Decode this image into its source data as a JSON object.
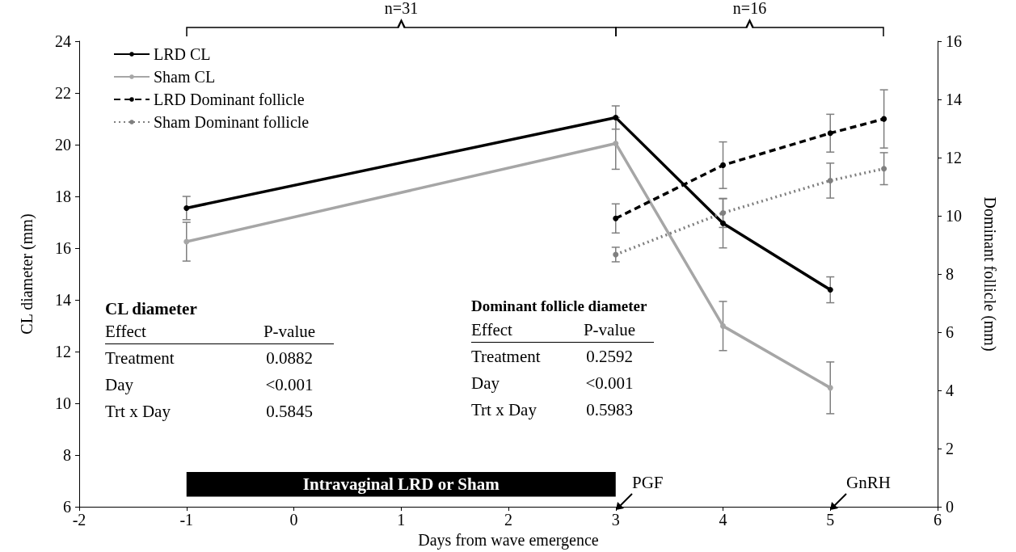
{
  "chart_data": {
    "type": "line",
    "xlabel": "Days from wave emergence",
    "ylabel": "CL diameter (mm)",
    "y2label": "Dominant follicle (mm)",
    "xlim": [
      -2,
      6
    ],
    "xticks": [
      -2,
      -1,
      0,
      1,
      2,
      3,
      4,
      5,
      6
    ],
    "ylim": [
      6,
      24
    ],
    "yticks": [
      6,
      8,
      10,
      12,
      14,
      16,
      18,
      20,
      22,
      24
    ],
    "y2lim": [
      0,
      16
    ],
    "y2ticks": [
      0,
      2,
      4,
      6,
      8,
      10,
      12,
      14,
      16
    ],
    "legend": "top left",
    "marker": "circle",
    "series": [
      {
        "name": "LRD CL",
        "color": "#000000",
        "line_style": "solid",
        "x": [
          -1,
          3,
          4,
          5
        ],
        "values": [
          17.55,
          21.05,
          16.96,
          14.39
        ],
        "errors": [
          0.45,
          0.45,
          0.95,
          0.5
        ]
      },
      {
        "name": "Sham CL",
        "color": "#a6a6a6",
        "line_style": "solid",
        "x": [
          -1,
          3,
          4,
          5
        ],
        "values": [
          16.25,
          20.05,
          12.99,
          10.6
        ],
        "errors": [
          0.75,
          1.0,
          0.95,
          1.0
        ]
      },
      {
        "name": "LRD Dominant follicle",
        "color": "#000000",
        "line_style": "dashed",
        "axis": "y2",
        "x": [
          3,
          4,
          5,
          5.5
        ],
        "values": [
          9.91,
          11.74,
          12.84,
          13.33
        ],
        "errors": [
          0.5,
          0.8,
          0.65,
          1.0
        ]
      },
      {
        "name": "Sham Dominant follicle",
        "color": "#7f7f7f",
        "line_style": "dotted",
        "axis": "y2",
        "x": [
          3,
          4,
          5,
          5.5
        ],
        "values": [
          8.67,
          10.1,
          11.21,
          11.62
        ],
        "errors": [
          0.25,
          0.5,
          0.6,
          0.55
        ]
      }
    ],
    "bands": [
      {
        "axis": "x",
        "from": -1,
        "to": 3,
        "label": "Intravaginal LRD or Sham",
        "color": "#000000"
      }
    ],
    "annotations": [
      "CL diameter",
      "Effect",
      "P-value",
      "Treatment",
      "0.0882",
      "Day",
      "<0.001",
      "Trt x Day",
      "0.5845",
      "Dominant follicle diameter",
      "Effect",
      "P-value",
      "Treatment",
      "0.2592",
      "Day",
      "<0.001",
      "Trt x Day",
      "0.5983",
      "PGF",
      "GnRH",
      "n=31",
      "n=16"
    ]
  }
}
